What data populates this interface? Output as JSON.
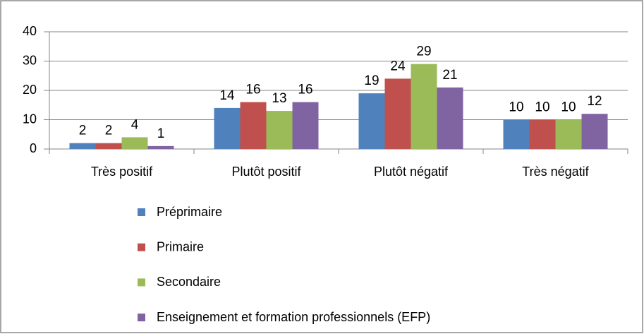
{
  "chart_data": {
    "type": "bar",
    "categories": [
      "Très positif",
      "Plutôt positif",
      "Plutôt négatif",
      "Très négatif"
    ],
    "series": [
      {
        "name": "Préprimaire",
        "color": "#4f81bd",
        "values": [
          2,
          14,
          19,
          10
        ]
      },
      {
        "name": "Primaire",
        "color": "#c0504d",
        "values": [
          2,
          16,
          24,
          10
        ]
      },
      {
        "name": "Secondaire",
        "color": "#9bbb59",
        "values": [
          4,
          13,
          29,
          10
        ]
      },
      {
        "name": "Enseignement et formation professionnels (EFP)",
        "color": "#8064a2",
        "values": [
          1,
          16,
          21,
          12
        ]
      }
    ],
    "ylim": [
      0,
      40
    ],
    "yticks": [
      0,
      10,
      20,
      30,
      40
    ],
    "grid": true,
    "legend": "bottom"
  }
}
